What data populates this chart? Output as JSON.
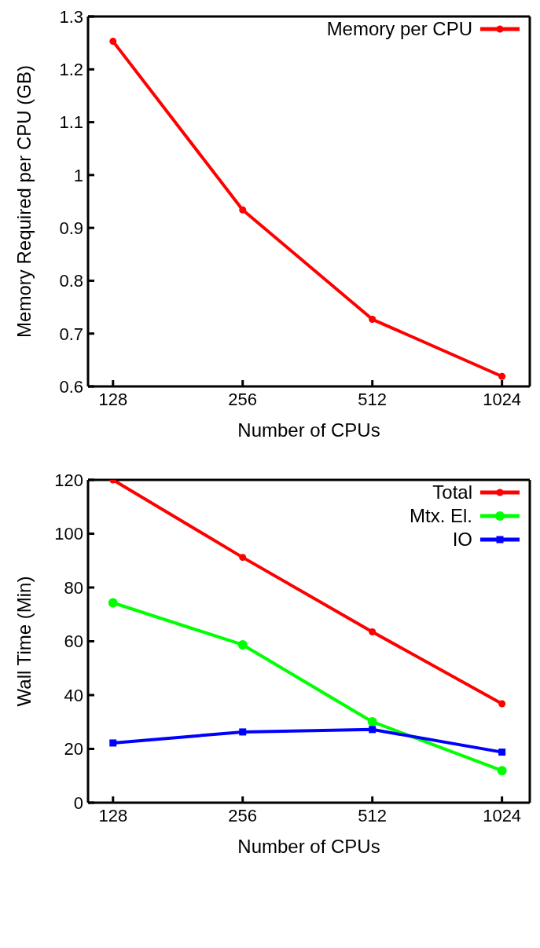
{
  "chart_data": [
    {
      "type": "line",
      "xlabel": "Number of CPUs",
      "ylabel": "Memory Required per CPU (GB)",
      "x": [
        128,
        256,
        512,
        1024
      ],
      "log": "x",
      "xlim": [
        112,
        1188
      ],
      "xticks": [
        128,
        256,
        512,
        1024
      ],
      "ylim": [
        0.6,
        1.3
      ],
      "yticks": [
        0.6,
        0.7,
        0.8,
        0.9,
        1,
        1.1,
        1.2,
        1.3
      ],
      "legend": "top right",
      "marker": "circle",
      "series": [
        {
          "name": "Memory per CPU",
          "color": "#ff0000",
          "values": [
            1.253,
            0.934,
            0.727,
            0.619
          ]
        }
      ]
    },
    {
      "type": "line",
      "xlabel": "Number of CPUs",
      "ylabel": "Wall Time (Min)",
      "x": [
        128,
        256,
        512,
        1024
      ],
      "log": "x",
      "xlim": [
        112,
        1188
      ],
      "xticks": [
        128,
        256,
        512,
        1024
      ],
      "ylim": [
        0,
        120
      ],
      "yticks": [
        0,
        20,
        40,
        60,
        80,
        100,
        120
      ],
      "legend": "top right",
      "series": [
        {
          "name": "Total",
          "color": "#ff0000",
          "marker": "circle",
          "values": [
            120,
            91.2,
            63.5,
            36.8
          ]
        },
        {
          "name": "Mtx. El.",
          "color": "#00ff00",
          "marker": "circle",
          "values": [
            74.3,
            58.7,
            30.1,
            11.9
          ]
        },
        {
          "name": "IO",
          "color": "#0000ff",
          "marker": "square",
          "values": [
            22.2,
            26.3,
            27.2,
            18.8
          ]
        }
      ]
    }
  ]
}
